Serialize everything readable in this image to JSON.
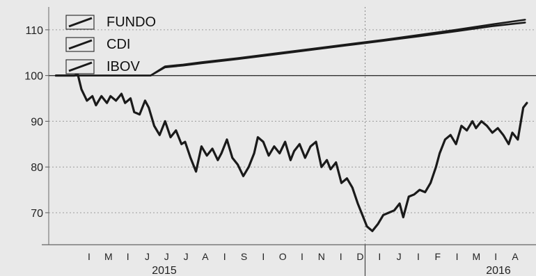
{
  "chart_data": {
    "type": "line",
    "ylim": [
      63,
      115
    ],
    "yticks": [
      70,
      80,
      90,
      100,
      110
    ],
    "grid": true,
    "legend_position": "top-left",
    "months": [
      "I",
      "M",
      "I",
      "J",
      "J",
      "J",
      "A",
      "I",
      "S",
      "I",
      "O",
      "I",
      "N",
      "I",
      "D",
      "I",
      "J",
      "I",
      "F",
      "I",
      "M",
      "I",
      "A"
    ],
    "years": [
      "2015",
      "2016"
    ],
    "series": [
      {
        "name": "FUNDO",
        "color": "#1a1a1a",
        "x": [
          0.0,
          0.15,
          0.35,
          1.0,
          2.0,
          2.6,
          3.0,
          3.5,
          4.0,
          5.0,
          6.0,
          7.0,
          8.0,
          9.0,
          10.0,
          11.0,
          12.0,
          12.9
        ],
        "y": [
          100.0,
          100.0,
          100.0,
          100.0,
          100.0,
          100.0,
          102.0,
          102.4,
          102.9,
          103.8,
          104.8,
          105.8,
          106.8,
          107.8,
          108.9,
          110.0,
          111.2,
          112.2
        ]
      },
      {
        "name": "CDI",
        "color": "#1a1a1a",
        "x": [
          0.0,
          0.15,
          0.35,
          1.0,
          2.0,
          2.6,
          3.0,
          3.5,
          4.0,
          5.0,
          6.0,
          7.0,
          8.0,
          9.0,
          10.0,
          11.0,
          12.0,
          12.9
        ],
        "y": [
          100.0,
          100.0,
          100.0,
          100.0,
          100.0,
          100.0,
          101.8,
          102.2,
          102.7,
          103.6,
          104.6,
          105.6,
          106.6,
          107.6,
          108.6,
          109.7,
          110.8,
          111.6
        ]
      },
      {
        "name": "IBOV",
        "color": "#1a1a1a",
        "x": [
          0.0,
          0.5,
          0.6,
          0.7,
          0.85,
          1.0,
          1.1,
          1.25,
          1.4,
          1.5,
          1.65,
          1.8,
          1.9,
          2.05,
          2.15,
          2.3,
          2.45,
          2.55,
          2.7,
          2.85,
          3.0,
          3.15,
          3.3,
          3.45,
          3.55,
          3.7,
          3.85,
          4.0,
          4.15,
          4.3,
          4.45,
          4.55,
          4.7,
          4.85,
          5.0,
          5.15,
          5.3,
          5.45,
          5.55,
          5.7,
          5.85,
          6.0,
          6.15,
          6.3,
          6.45,
          6.55,
          6.7,
          6.85,
          7.0,
          7.15,
          7.3,
          7.45,
          7.55,
          7.7,
          7.85,
          8.0,
          8.15,
          8.3,
          8.45,
          8.55,
          8.7,
          8.85,
          9.0,
          9.15,
          9.3,
          9.45,
          9.55,
          9.7,
          9.85,
          10.0,
          10.15,
          10.3,
          10.45,
          10.55,
          10.7,
          10.85,
          11.0,
          11.15,
          11.3,
          11.45,
          11.55,
          11.7,
          11.85,
          12.0,
          12.15,
          12.3,
          12.45,
          12.55,
          12.7,
          12.85,
          12.95
        ],
        "y": [
          100.0,
          100.0,
          100.2,
          97.0,
          94.5,
          95.5,
          93.5,
          95.5,
          94.0,
          95.5,
          94.5,
          96.0,
          94.0,
          95.0,
          92.0,
          91.5,
          94.5,
          93.0,
          89.0,
          87.0,
          90.0,
          86.5,
          88.0,
          85.0,
          85.5,
          82.0,
          79.0,
          84.5,
          82.5,
          84.0,
          81.5,
          83.0,
          86.0,
          82.0,
          80.5,
          78.0,
          80.0,
          83.0,
          86.5,
          85.5,
          82.5,
          84.5,
          83.0,
          85.5,
          81.5,
          83.5,
          85.0,
          82.0,
          84.5,
          85.5,
          80.0,
          81.5,
          79.5,
          81.0,
          76.5,
          77.5,
          75.5,
          72.0,
          69.0,
          67.0,
          66.0,
          67.5,
          69.5,
          70.0,
          70.5,
          72.0,
          69.0,
          73.5,
          74.0,
          75.0,
          74.5,
          76.5,
          80.0,
          83.0,
          86.0,
          87.0,
          85.0,
          89.0,
          88.0,
          90.0,
          88.5,
          90.0,
          89.0,
          87.5,
          88.5,
          87.0,
          85.0,
          87.5,
          86.0,
          93.0,
          94.0
        ]
      }
    ]
  }
}
